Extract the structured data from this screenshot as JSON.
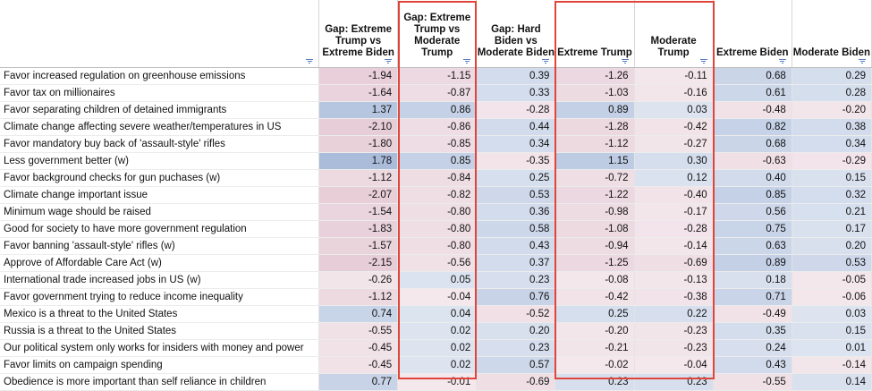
{
  "headers": [
    "",
    "Gap: Extreme Trump vs Extreme Biden",
    "Gap: Extreme Trump vs Moderate Trump",
    "Gap: Hard Biden vs Moderate Biden",
    "Extreme Trump",
    "Moderate Trump",
    "Extreme Biden",
    "Moderate Biden"
  ],
  "rows": [
    {
      "label": "Favor increased regulation on greenhouse emissions",
      "values": [
        "-1.94",
        "-1.15",
        "0.39",
        "-1.26",
        "-0.11",
        "0.68",
        "0.29"
      ]
    },
    {
      "label": "Favor tax on millionaires",
      "values": [
        "-1.64",
        "-0.87",
        "0.33",
        "-1.03",
        "-0.16",
        "0.61",
        "0.28"
      ]
    },
    {
      "label": "Favor separating children of detained immigrants",
      "values": [
        "1.37",
        "0.86",
        "-0.28",
        "0.89",
        "0.03",
        "-0.48",
        "-0.20"
      ]
    },
    {
      "label": "Climate change affecting severe weather/temperatures in US",
      "values": [
        "-2.10",
        "-0.86",
        "0.44",
        "-1.28",
        "-0.42",
        "0.82",
        "0.38"
      ]
    },
    {
      "label": "Favor mandatory buy back of 'assault-style' rifles",
      "values": [
        "-1.80",
        "-0.85",
        "0.34",
        "-1.12",
        "-0.27",
        "0.68",
        "0.34"
      ]
    },
    {
      "label": "Less government better (w)",
      "values": [
        "1.78",
        "0.85",
        "-0.35",
        "1.15",
        "0.30",
        "-0.63",
        "-0.29"
      ]
    },
    {
      "label": "Favor background checks for gun puchases (w)",
      "values": [
        "-1.12",
        "-0.84",
        "0.25",
        "-0.72",
        "0.12",
        "0.40",
        "0.15"
      ]
    },
    {
      "label": "Climate change important issue",
      "values": [
        "-2.07",
        "-0.82",
        "0.53",
        "-1.22",
        "-0.40",
        "0.85",
        "0.32"
      ]
    },
    {
      "label": "Minimum wage should be raised",
      "values": [
        "-1.54",
        "-0.80",
        "0.36",
        "-0.98",
        "-0.17",
        "0.56",
        "0.21"
      ]
    },
    {
      "label": "Good for society to have more government regulation",
      "values": [
        "-1.83",
        "-0.80",
        "0.58",
        "-1.08",
        "-0.28",
        "0.75",
        "0.17"
      ]
    },
    {
      "label": "Favor banning 'assault-style' rifles (w)",
      "values": [
        "-1.57",
        "-0.80",
        "0.43",
        "-0.94",
        "-0.14",
        "0.63",
        "0.20"
      ]
    },
    {
      "label": "Approve of Affordable Care Act (w)",
      "values": [
        "-2.15",
        "-0.56",
        "0.37",
        "-1.25",
        "-0.69",
        "0.89",
        "0.53"
      ]
    },
    {
      "label": "International trade increased jobs in US (w)",
      "values": [
        "-0.26",
        "0.05",
        "0.23",
        "-0.08",
        "-0.13",
        "0.18",
        "-0.05"
      ]
    },
    {
      "label": "Favor government trying to reduce income inequality",
      "values": [
        "-1.12",
        "-0.04",
        "0.76",
        "-0.42",
        "-0.38",
        "0.71",
        "-0.06"
      ]
    },
    {
      "label": "Mexico is a threat to the United States",
      "values": [
        "0.74",
        "0.04",
        "-0.52",
        "0.25",
        "0.22",
        "-0.49",
        "0.03"
      ]
    },
    {
      "label": "Russia is a threat to the United States",
      "values": [
        "-0.55",
        "0.02",
        "0.20",
        "-0.20",
        "-0.23",
        "0.35",
        "0.15"
      ]
    },
    {
      "label": "Our political system only works for insiders with money and power",
      "values": [
        "-0.45",
        "0.02",
        "0.23",
        "-0.21",
        "-0.23",
        "0.24",
        "0.01"
      ]
    },
    {
      "label": "Favor limits on campaign spending",
      "values": [
        "-0.45",
        "0.02",
        "0.57",
        "-0.02",
        "-0.04",
        "0.43",
        "-0.14"
      ]
    },
    {
      "label": "Obedience is more important than self reliance in children",
      "values": [
        "0.77",
        "-0.01",
        "-0.69",
        "0.23",
        "0.23",
        "-0.55",
        "0.14"
      ]
    }
  ],
  "divider_before_row": 12,
  "highlighted_columns": [
    2,
    4,
    5
  ],
  "colors": {
    "positive_scale": "#9fb3d6",
    "negative_scale": "#e9cfd8",
    "highlight_border": "#e0453a",
    "header_filter_icon": "#5b7fbf"
  }
}
